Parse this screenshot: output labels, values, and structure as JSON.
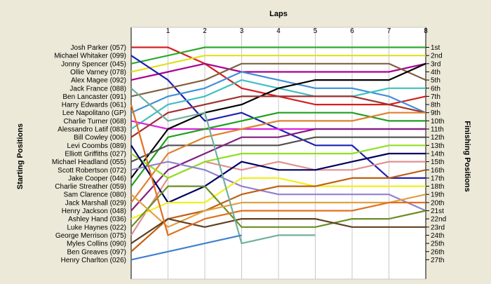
{
  "chart_data": {
    "type": "line",
    "title": "",
    "x_title": "Laps",
    "y_left_title": "Starting Positions",
    "y_right_title": "Finishing Positions",
    "laps": [
      0,
      1,
      2,
      3,
      4,
      5,
      6,
      7,
      8
    ],
    "lap_tick_labels": [
      "1",
      "2",
      "3",
      "4",
      "5",
      "6",
      "7",
      "8"
    ],
    "y_range": [
      1,
      27
    ],
    "grid": "vertical",
    "finishing_labels": [
      "1st",
      "2nd",
      "3rd",
      "4th",
      "5th",
      "6th",
      "7th",
      "8th",
      "9th",
      "10th",
      "11th",
      "12th",
      "13th",
      "14th",
      "15th",
      "16th",
      "17th",
      "18th",
      "19th",
      "20th",
      "21st",
      "22nd",
      "23rd",
      "24th",
      "25th",
      "26th",
      "27th"
    ],
    "series": [
      {
        "name": "Josh Parker (057)",
        "color": "#d42020",
        "positions": [
          1,
          1,
          3,
          6,
          7,
          8,
          8,
          8,
          7
        ]
      },
      {
        "name": "Jonny Spencer (045)",
        "color": "#2faa2f",
        "positions": [
          3,
          2,
          1,
          1,
          1,
          1,
          1,
          1,
          1
        ]
      },
      {
        "name": "Ollie Varney (078)",
        "color": "#e0e020",
        "positions": [
          4,
          3,
          2,
          2,
          2,
          2,
          2,
          2,
          2
        ]
      },
      {
        "name": "Alex Magee (092)",
        "color": "#aa0090",
        "positions": [
          5,
          4,
          3,
          4,
          4,
          4,
          4,
          4,
          3
        ]
      },
      {
        "name": "Michael Whitaker (099)",
        "color": "#2020b0",
        "positions": [
          2,
          5,
          10,
          9,
          11,
          13,
          13,
          17,
          17
        ]
      },
      {
        "name": "Ben Lancaster (091)",
        "color": "#806040",
        "positions": [
          7,
          6,
          5,
          3,
          3,
          3,
          3,
          3,
          5
        ]
      },
      {
        "name": "Lee Napolitano (GP)",
        "color": "#4090d8",
        "positions": [
          9,
          7,
          6,
          4,
          5,
          6,
          6,
          7,
          9
        ]
      },
      {
        "name": "Alessandro Latif (083)",
        "color": "#40c0c0",
        "positions": [
          11,
          8,
          7,
          5,
          6,
          7,
          7,
          6,
          6
        ]
      },
      {
        "name": "Charlie Turner (068)",
        "color": "#e020e0",
        "positions": [
          10,
          11,
          11,
          11,
          11,
          11,
          11,
          11,
          11
        ]
      },
      {
        "name": "Jake Cooper (046)",
        "color": "#000000",
        "positions": [
          17,
          11,
          9,
          8,
          6,
          5,
          5,
          5,
          3
        ]
      },
      {
        "name": "Bill Cowley (006)",
        "color": "#a03030",
        "positions": [
          12,
          9,
          8,
          7,
          7,
          7,
          7,
          8,
          9
        ]
      },
      {
        "name": "Charlie Streather (059)",
        "color": "#20a020",
        "positions": [
          18,
          12,
          11,
          10,
          9,
          9,
          9,
          10,
          10
        ]
      },
      {
        "name": "Michael Headland (055)",
        "color": "#505050",
        "positions": [
          15,
          13,
          13,
          13,
          13,
          12,
          12,
          12,
          12
        ]
      },
      {
        "name": "Jack Marshall (029)",
        "color": "#e08030",
        "positions": [
          20,
          14,
          12,
          11,
          10,
          10,
          10,
          9,
          9
        ]
      },
      {
        "name": "Henry Jackson (048)",
        "color": "#802080",
        "positions": [
          21,
          16,
          14,
          12,
          12,
          11,
          11,
          11,
          11
        ]
      },
      {
        "name": "George Merrison (075)",
        "color": "#e09090",
        "positions": [
          24,
          17,
          15,
          16,
          15,
          16,
          16,
          15,
          15
        ]
      },
      {
        "name": "Elliott Griffiths (027)",
        "color": "#90e020",
        "positions": [
          14,
          17,
          15,
          14,
          14,
          14,
          14,
          13,
          13
        ]
      },
      {
        "name": "Scott Robertson (072)",
        "color": "#9080d0",
        "positions": [
          16,
          15,
          16,
          18,
          19,
          19,
          19,
          19,
          21
        ]
      },
      {
        "name": "Levi Coombs (089)",
        "color": "#000060",
        "positions": [
          13,
          20,
          18,
          15,
          16,
          16,
          15,
          14,
          14
        ]
      },
      {
        "name": "Ashley Hand (036)",
        "color": "#f0f020",
        "positions": [
          22,
          20,
          20,
          17,
          17,
          18,
          18,
          18,
          18
        ]
      },
      {
        "name": "Luke Haynes (022)",
        "color": "#6b8e23",
        "positions": [
          23,
          18,
          18,
          23,
          23,
          23,
          22,
          22,
          21
        ]
      },
      {
        "name": "Ben Greaves (097)",
        "color": "#c06010",
        "positions": [
          26,
          22,
          21,
          19,
          18,
          18,
          17,
          17,
          16
        ]
      },
      {
        "name": "Sam Clarence (080)",
        "color": "#e0a040",
        "positions": [
          19,
          23,
          21,
          20,
          20,
          20,
          20,
          20,
          19
        ]
      },
      {
        "name": "Myles Collins (090)",
        "color": "#604020",
        "positions": [
          25,
          22,
          23,
          22,
          22,
          22,
          23,
          23,
          23
        ]
      },
      {
        "name": "Harry Edwards (061)",
        "color": "#e07020",
        "positions": [
          8,
          24,
          22,
          21,
          21,
          21,
          21,
          20,
          20
        ]
      },
      {
        "name": "Jack France (088)",
        "color": "#70b0a0",
        "positions": [
          6,
          10,
          9,
          25,
          24,
          24
        ]
      },
      {
        "name": "Henry Charlton (026)",
        "color": "#4080d0",
        "positions": [
          27,
          26,
          25,
          24
        ]
      }
    ]
  }
}
